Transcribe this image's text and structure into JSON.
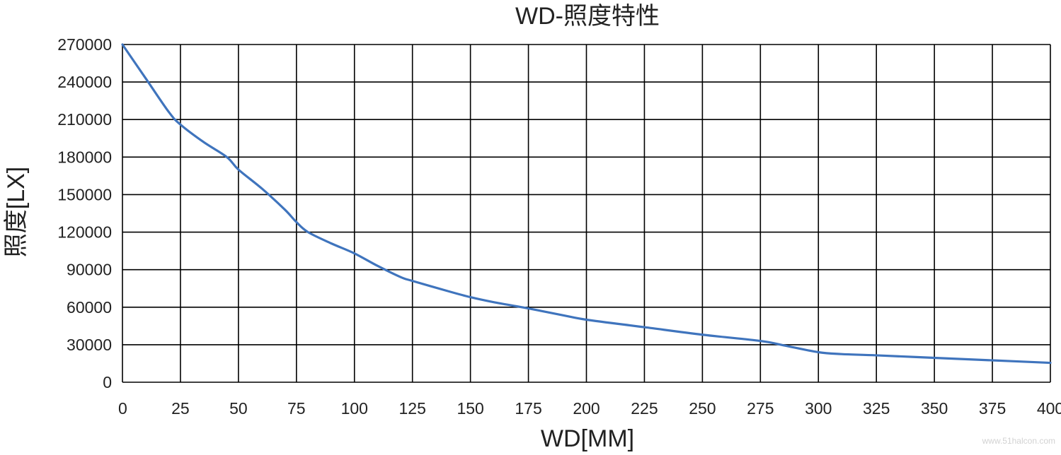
{
  "chart_data": {
    "type": "line",
    "title": "WD-照度特性",
    "xlabel": "WD[MM]",
    "ylabel": "照度[LX]",
    "xlim": [
      0,
      400
    ],
    "ylim": [
      0,
      270000
    ],
    "x_ticks": [
      0,
      25,
      50,
      75,
      100,
      125,
      150,
      175,
      200,
      225,
      250,
      275,
      300,
      325,
      350,
      375,
      400
    ],
    "y_ticks": [
      0,
      30000,
      60000,
      90000,
      120000,
      150000,
      180000,
      210000,
      240000,
      270000
    ],
    "grid": true,
    "line_color": "#3f74bd",
    "series": [
      {
        "x": [
          0,
          10,
          20,
          25,
          35,
          45,
          50,
          60,
          70,
          75,
          80,
          90,
          100,
          110,
          120,
          125,
          140,
          150,
          160,
          175,
          190,
          200,
          225,
          250,
          275,
          285,
          300,
          310,
          325,
          350,
          375,
          400
        ],
        "y": [
          270000,
          243000,
          216000,
          206000,
          192000,
          180000,
          170000,
          155000,
          138000,
          128000,
          120000,
          111000,
          103000,
          93000,
          84000,
          81000,
          73000,
          68000,
          64000,
          59000,
          53500,
          50000,
          44000,
          38000,
          33000,
          29500,
          24000,
          22500,
          21500,
          19500,
          17500,
          15500
        ]
      }
    ]
  },
  "watermark": "www.51halcon.com"
}
